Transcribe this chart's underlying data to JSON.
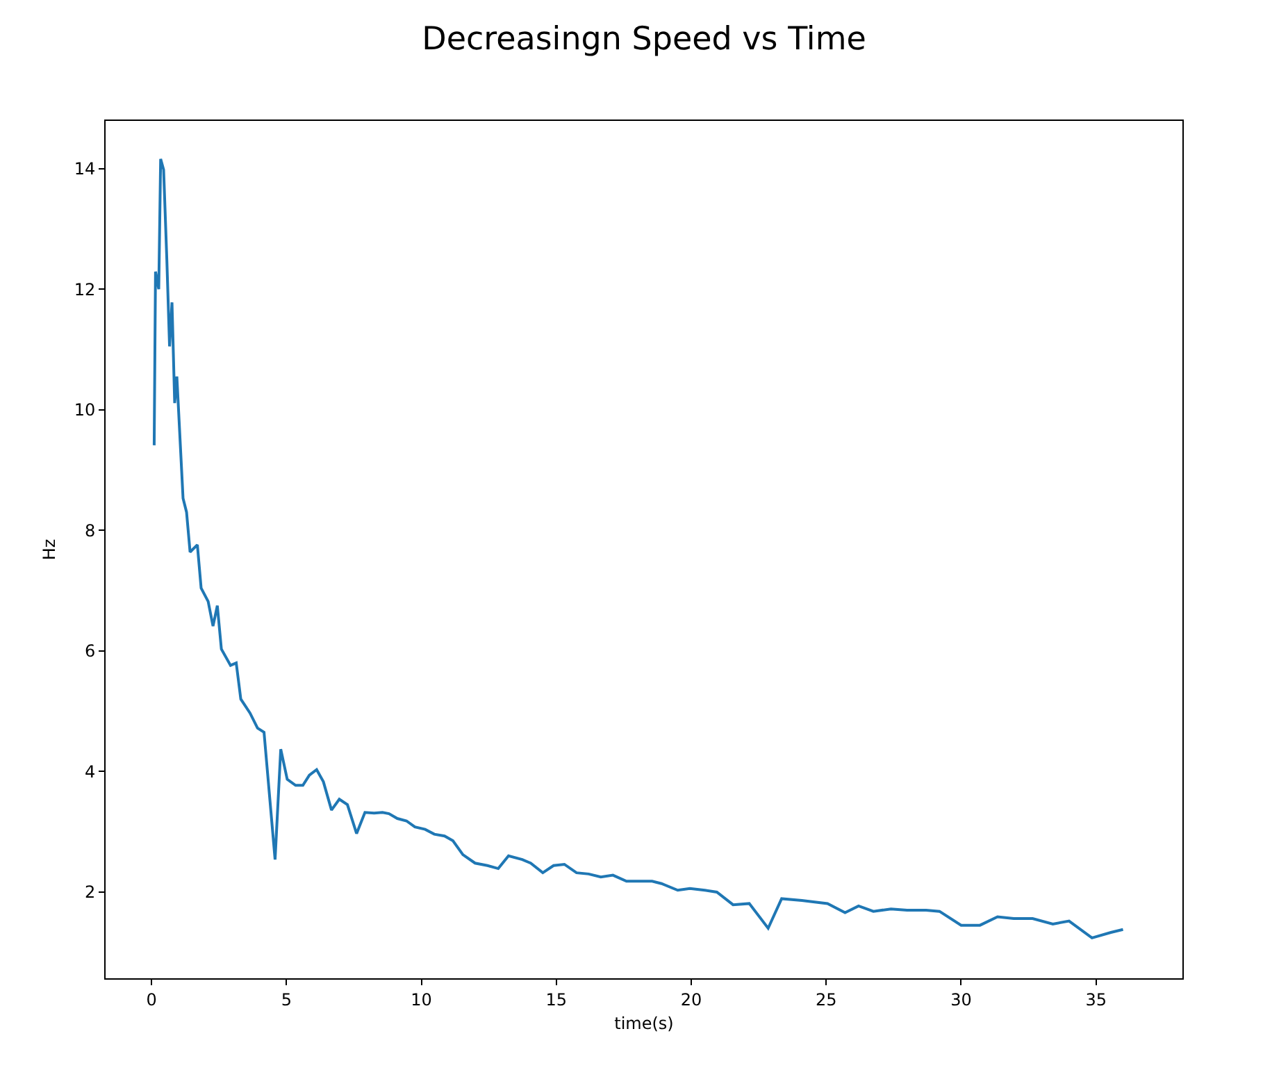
{
  "chart_data": {
    "type": "line",
    "title": "Decreasingn Speed vs Time",
    "xlabel": "time(s)",
    "ylabel": "Hz",
    "xlim": [
      -1.7,
      38.2
    ],
    "xticks": [
      0,
      5,
      10,
      15,
      20,
      25,
      30,
      35
    ],
    "ylim": [
      0.57,
      14.79
    ],
    "yticks": [
      2,
      4,
      6,
      8,
      10,
      12,
      14
    ],
    "series": [
      {
        "color": "#1f77b4",
        "x": [
          0.1,
          0.15,
          0.27,
          0.34,
          0.45,
          0.57,
          0.67,
          0.76,
          0.86,
          0.94,
          1.17,
          1.3,
          1.43,
          1.7,
          1.84,
          2.1,
          2.28,
          2.44,
          2.59,
          2.93,
          3.14,
          3.31,
          3.65,
          3.93,
          4.17,
          4.58,
          4.79,
          5.03,
          5.34,
          5.61,
          5.85,
          6.12,
          6.37,
          6.67,
          6.96,
          7.26,
          7.6,
          7.91,
          8.25,
          8.56,
          8.8,
          9.11,
          9.45,
          9.76,
          10.14,
          10.48,
          10.86,
          11.17,
          11.54,
          11.99,
          12.45,
          12.85,
          13.23,
          13.74,
          14.05,
          14.5,
          14.9,
          15.3,
          15.75,
          16.2,
          16.65,
          17.1,
          17.6,
          18.05,
          18.55,
          18.9,
          19.5,
          19.95,
          20.5,
          20.95,
          21.55,
          22.15,
          22.85,
          23.35,
          24.1,
          25.05,
          25.7,
          26.2,
          26.75,
          27.4,
          28.0,
          28.7,
          29.2,
          30.0,
          30.7,
          31.35,
          31.95,
          32.65,
          33.4,
          34.0,
          34.85,
          35.55,
          36.0
        ],
        "values": [
          9.41,
          12.29,
          12.0,
          14.16,
          13.98,
          12.48,
          11.05,
          11.78,
          10.11,
          10.55,
          8.53,
          8.3,
          7.64,
          7.76,
          7.04,
          6.82,
          6.41,
          6.75,
          6.03,
          5.76,
          5.8,
          5.2,
          4.97,
          4.72,
          4.65,
          2.54,
          4.37,
          3.87,
          3.77,
          3.77,
          3.94,
          4.03,
          3.83,
          3.36,
          3.54,
          3.45,
          2.97,
          3.32,
          3.31,
          3.32,
          3.3,
          3.22,
          3.18,
          3.08,
          3.04,
          2.96,
          2.93,
          2.85,
          2.62,
          2.48,
          2.44,
          2.39,
          2.6,
          2.54,
          2.48,
          2.32,
          2.44,
          2.46,
          2.32,
          2.3,
          2.25,
          2.28,
          2.18,
          2.18,
          2.18,
          2.14,
          2.03,
          2.06,
          2.03,
          2.0,
          1.79,
          1.81,
          1.4,
          1.89,
          1.86,
          1.81,
          1.66,
          1.77,
          1.68,
          1.72,
          1.7,
          1.7,
          1.68,
          1.45,
          1.45,
          1.59,
          1.56,
          1.56,
          1.47,
          1.52,
          1.24,
          1.33,
          1.38
        ]
      }
    ]
  }
}
